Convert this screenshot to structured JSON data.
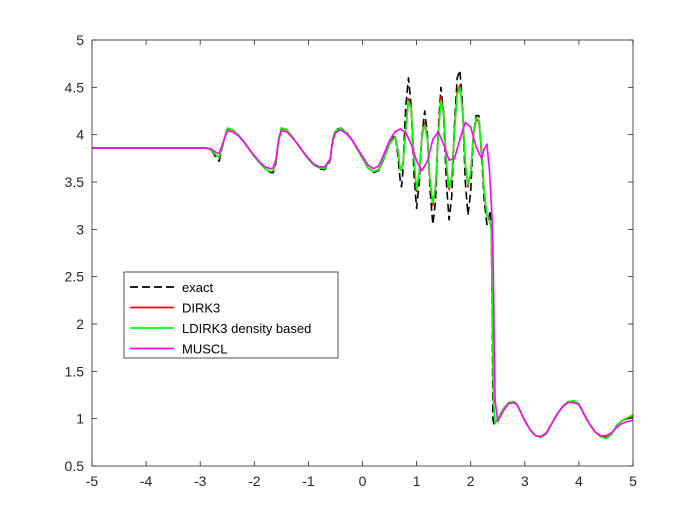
{
  "chart_data": {
    "type": "line",
    "xlabel": "",
    "ylabel": "",
    "xlim": [
      -5,
      5
    ],
    "ylim": [
      0.5,
      5
    ],
    "xticks": [
      -5,
      -4,
      -3,
      -2,
      -1,
      0,
      1,
      2,
      3,
      4,
      5
    ],
    "yticks": [
      0.5,
      1,
      1.5,
      2,
      2.5,
      3,
      3.5,
      4,
      4.5,
      5
    ],
    "grid": false,
    "legend_position": "center-left",
    "series": [
      {
        "name": "exact",
        "color": "#000000",
        "dash": "dashed",
        "x": [
          -5,
          -3.0,
          -2.9,
          -2.8,
          -2.75,
          -2.7,
          -2.65,
          -2.6,
          -2.5,
          -2.4,
          -2.3,
          -2.2,
          -2.1,
          -2.0,
          -1.9,
          -1.8,
          -1.7,
          -1.65,
          -1.6,
          -1.55,
          -1.5,
          -1.4,
          -1.3,
          -1.2,
          -1.1,
          -1.0,
          -0.9,
          -0.8,
          -0.7,
          -0.6,
          -0.55,
          -0.5,
          -0.4,
          -0.3,
          -0.2,
          -0.1,
          0.0,
          0.1,
          0.2,
          0.3,
          0.4,
          0.5,
          0.6,
          0.65,
          0.7,
          0.72,
          0.74,
          0.76,
          0.8,
          0.85,
          0.9,
          0.95,
          1.0,
          1.05,
          1.1,
          1.15,
          1.2,
          1.25,
          1.3,
          1.35,
          1.4,
          1.45,
          1.5,
          1.55,
          1.6,
          1.65,
          1.7,
          1.75,
          1.8,
          1.85,
          1.9,
          1.95,
          2.0,
          2.05,
          2.1,
          2.15,
          2.2,
          2.25,
          2.3,
          2.33,
          2.36,
          2.38,
          2.4,
          2.41,
          2.43,
          2.5,
          2.6,
          2.7,
          2.8,
          2.85,
          2.9,
          3.0,
          3.1,
          3.2,
          3.3,
          3.4,
          3.45,
          3.5,
          3.6,
          3.7,
          3.8,
          3.9,
          4.0,
          4.05,
          4.1,
          4.2,
          4.3,
          4.4,
          4.5,
          4.6,
          4.65,
          4.7,
          4.8,
          4.9,
          5.0
        ],
        "y": [
          3.86,
          3.86,
          3.86,
          3.84,
          3.8,
          3.75,
          3.72,
          3.85,
          4.07,
          4.05,
          4.0,
          3.93,
          3.85,
          3.77,
          3.7,
          3.64,
          3.6,
          3.6,
          3.7,
          3.95,
          4.07,
          4.05,
          3.98,
          3.9,
          3.82,
          3.74,
          3.68,
          3.64,
          3.63,
          3.72,
          3.95,
          4.05,
          4.07,
          4.03,
          3.95,
          3.85,
          3.75,
          3.65,
          3.6,
          3.62,
          3.75,
          3.9,
          4.0,
          3.8,
          3.5,
          3.45,
          3.55,
          3.8,
          4.3,
          4.6,
          4.3,
          3.6,
          3.22,
          3.5,
          4.0,
          4.25,
          4.0,
          3.4,
          3.05,
          3.3,
          4.05,
          4.5,
          4.2,
          3.5,
          3.1,
          3.35,
          4.1,
          4.6,
          4.68,
          4.3,
          3.5,
          3.15,
          3.4,
          4.0,
          4.2,
          4.2,
          3.8,
          3.3,
          3.05,
          3.1,
          3.2,
          3.0,
          2.0,
          1.0,
          0.93,
          1.0,
          1.1,
          1.17,
          1.17,
          1.15,
          1.1,
          0.98,
          0.88,
          0.82,
          0.81,
          0.85,
          0.9,
          0.95,
          1.05,
          1.13,
          1.18,
          1.18,
          1.15,
          1.1,
          1.04,
          0.94,
          0.86,
          0.81,
          0.8,
          0.84,
          0.88,
          0.93,
          0.98,
          1.0,
          1.02
        ]
      },
      {
        "name": "DIRK3",
        "color": "#ff0000",
        "dash": "solid",
        "x": [
          -5,
          -3.0,
          -2.9,
          -2.8,
          -2.75,
          -2.7,
          -2.65,
          -2.6,
          -2.5,
          -2.4,
          -2.3,
          -2.2,
          -2.1,
          -2.0,
          -1.9,
          -1.8,
          -1.7,
          -1.65,
          -1.6,
          -1.55,
          -1.5,
          -1.4,
          -1.3,
          -1.2,
          -1.1,
          -1.0,
          -0.9,
          -0.8,
          -0.7,
          -0.6,
          -0.55,
          -0.5,
          -0.4,
          -0.3,
          -0.2,
          -0.1,
          0.0,
          0.1,
          0.2,
          0.3,
          0.4,
          0.5,
          0.6,
          0.65,
          0.7,
          0.75,
          0.8,
          0.85,
          0.9,
          0.95,
          1.0,
          1.05,
          1.1,
          1.15,
          1.2,
          1.25,
          1.3,
          1.35,
          1.4,
          1.45,
          1.5,
          1.55,
          1.6,
          1.65,
          1.7,
          1.75,
          1.8,
          1.85,
          1.9,
          1.95,
          2.0,
          2.05,
          2.1,
          2.15,
          2.2,
          2.25,
          2.3,
          2.35,
          2.38,
          2.4,
          2.42,
          2.45,
          2.5,
          2.6,
          2.7,
          2.8,
          2.85,
          2.9,
          3.0,
          3.1,
          3.2,
          3.3,
          3.4,
          3.45,
          3.5,
          3.6,
          3.7,
          3.8,
          3.9,
          4.0,
          4.05,
          4.1,
          4.2,
          4.3,
          4.4,
          4.5,
          4.6,
          4.65,
          4.7,
          4.8,
          4.9,
          5.0
        ],
        "y": [
          3.86,
          3.86,
          3.86,
          3.84,
          3.81,
          3.78,
          3.76,
          3.86,
          4.06,
          4.05,
          4.0,
          3.93,
          3.85,
          3.77,
          3.7,
          3.64,
          3.61,
          3.62,
          3.72,
          3.95,
          4.06,
          4.05,
          3.98,
          3.9,
          3.82,
          3.74,
          3.68,
          3.65,
          3.64,
          3.73,
          3.95,
          4.04,
          4.06,
          4.02,
          3.95,
          3.85,
          3.75,
          3.65,
          3.61,
          3.63,
          3.76,
          3.9,
          3.98,
          3.85,
          3.62,
          3.7,
          4.05,
          4.38,
          4.3,
          3.75,
          3.4,
          3.6,
          4.0,
          4.13,
          3.95,
          3.5,
          3.25,
          3.45,
          4.0,
          4.4,
          4.25,
          3.7,
          3.42,
          3.55,
          4.05,
          4.45,
          4.52,
          4.25,
          3.7,
          3.45,
          3.6,
          4.0,
          4.15,
          4.15,
          3.85,
          3.4,
          3.15,
          3.1,
          3.0,
          2.2,
          1.2,
          0.95,
          1.0,
          1.1,
          1.17,
          1.17,
          1.15,
          1.1,
          0.98,
          0.88,
          0.82,
          0.81,
          0.85,
          0.9,
          0.95,
          1.05,
          1.13,
          1.18,
          1.18,
          1.15,
          1.1,
          1.04,
          0.94,
          0.86,
          0.81,
          0.8,
          0.84,
          0.88,
          0.93,
          0.98,
          1.0,
          1.02
        ]
      },
      {
        "name": "LDIRK3 density based",
        "color": "#00ff00",
        "dash": "solid",
        "x": [
          -5,
          -3.0,
          -2.9,
          -2.8,
          -2.75,
          -2.7,
          -2.65,
          -2.6,
          -2.5,
          -2.4,
          -2.3,
          -2.2,
          -2.1,
          -2.0,
          -1.9,
          -1.8,
          -1.7,
          -1.65,
          -1.6,
          -1.55,
          -1.5,
          -1.4,
          -1.3,
          -1.2,
          -1.1,
          -1.0,
          -0.9,
          -0.8,
          -0.7,
          -0.6,
          -0.55,
          -0.5,
          -0.4,
          -0.3,
          -0.2,
          -0.1,
          0.0,
          0.1,
          0.2,
          0.3,
          0.4,
          0.5,
          0.6,
          0.65,
          0.7,
          0.75,
          0.8,
          0.85,
          0.9,
          0.95,
          1.0,
          1.05,
          1.1,
          1.15,
          1.2,
          1.25,
          1.3,
          1.35,
          1.4,
          1.45,
          1.5,
          1.55,
          1.6,
          1.65,
          1.7,
          1.75,
          1.8,
          1.85,
          1.9,
          1.95,
          2.0,
          2.05,
          2.1,
          2.15,
          2.2,
          2.25,
          2.3,
          2.35,
          2.38,
          2.4,
          2.42,
          2.45,
          2.5,
          2.6,
          2.7,
          2.8,
          2.85,
          2.9,
          3.0,
          3.1,
          3.2,
          3.3,
          3.4,
          3.45,
          3.5,
          3.6,
          3.7,
          3.8,
          3.9,
          4.0,
          4.05,
          4.1,
          4.2,
          4.3,
          4.4,
          4.5,
          4.6,
          4.65,
          4.7,
          4.8,
          4.9,
          5.0
        ],
        "y": [
          3.86,
          3.86,
          3.86,
          3.84,
          3.81,
          3.78,
          3.76,
          3.86,
          4.07,
          4.05,
          4.0,
          3.93,
          3.85,
          3.77,
          3.7,
          3.64,
          3.61,
          3.62,
          3.72,
          3.95,
          4.07,
          4.05,
          3.98,
          3.9,
          3.82,
          3.74,
          3.68,
          3.65,
          3.64,
          3.73,
          3.95,
          4.04,
          4.07,
          4.02,
          3.95,
          3.85,
          3.75,
          3.65,
          3.61,
          3.63,
          3.76,
          3.9,
          3.98,
          3.85,
          3.62,
          3.7,
          4.05,
          4.35,
          4.28,
          3.75,
          3.42,
          3.6,
          4.0,
          4.1,
          3.95,
          3.5,
          3.28,
          3.45,
          3.98,
          4.36,
          4.22,
          3.7,
          3.44,
          3.55,
          4.02,
          4.42,
          4.5,
          4.25,
          3.7,
          3.47,
          3.6,
          4.0,
          4.18,
          4.15,
          3.85,
          3.4,
          3.15,
          3.1,
          3.0,
          2.2,
          1.2,
          0.95,
          1.0,
          1.1,
          1.17,
          1.18,
          1.16,
          1.1,
          0.98,
          0.88,
          0.82,
          0.8,
          0.84,
          0.89,
          0.95,
          1.05,
          1.13,
          1.18,
          1.19,
          1.16,
          1.1,
          1.04,
          0.94,
          0.86,
          0.81,
          0.79,
          0.83,
          0.88,
          0.93,
          0.98,
          1.01,
          1.04
        ]
      },
      {
        "name": "MUSCL",
        "color": "#ff00ff",
        "dash": "solid",
        "x": [
          -5,
          -3.0,
          -2.9,
          -2.8,
          -2.75,
          -2.7,
          -2.65,
          -2.6,
          -2.5,
          -2.4,
          -2.3,
          -2.2,
          -2.1,
          -2.0,
          -1.9,
          -1.8,
          -1.7,
          -1.65,
          -1.6,
          -1.55,
          -1.5,
          -1.4,
          -1.3,
          -1.2,
          -1.1,
          -1.0,
          -0.9,
          -0.8,
          -0.7,
          -0.6,
          -0.55,
          -0.5,
          -0.4,
          -0.3,
          -0.2,
          -0.1,
          0.0,
          0.1,
          0.2,
          0.3,
          0.4,
          0.5,
          0.6,
          0.7,
          0.8,
          0.9,
          1.0,
          1.1,
          1.2,
          1.3,
          1.4,
          1.5,
          1.6,
          1.7,
          1.8,
          1.9,
          2.0,
          2.1,
          2.2,
          2.25,
          2.3,
          2.35,
          2.4,
          2.42,
          2.45,
          2.5,
          2.6,
          2.7,
          2.8,
          2.85,
          2.9,
          3.0,
          3.1,
          3.2,
          3.3,
          3.4,
          3.45,
          3.5,
          3.6,
          3.7,
          3.8,
          3.9,
          4.0,
          4.05,
          4.1,
          4.2,
          4.3,
          4.4,
          4.5,
          4.6,
          4.65,
          4.7,
          4.8,
          4.9,
          5.0
        ],
        "y": [
          3.86,
          3.86,
          3.86,
          3.85,
          3.83,
          3.81,
          3.8,
          3.88,
          4.04,
          4.03,
          3.99,
          3.93,
          3.85,
          3.78,
          3.71,
          3.66,
          3.64,
          3.65,
          3.74,
          3.94,
          4.04,
          4.03,
          3.97,
          3.9,
          3.82,
          3.75,
          3.69,
          3.66,
          3.66,
          3.74,
          3.93,
          4.02,
          4.05,
          4.01,
          3.95,
          3.86,
          3.77,
          3.68,
          3.64,
          3.67,
          3.8,
          3.94,
          4.03,
          4.06,
          4.02,
          3.9,
          3.72,
          3.62,
          3.72,
          3.95,
          4.03,
          3.9,
          3.73,
          3.75,
          3.95,
          4.13,
          4.08,
          3.87,
          3.75,
          3.85,
          3.9,
          3.6,
          3.05,
          2.5,
          1.2,
          0.97,
          1.08,
          1.16,
          1.17,
          1.15,
          1.1,
          0.98,
          0.88,
          0.82,
          0.81,
          0.85,
          0.9,
          0.95,
          1.05,
          1.13,
          1.17,
          1.17,
          1.15,
          1.1,
          1.04,
          0.94,
          0.86,
          0.82,
          0.82,
          0.85,
          0.88,
          0.91,
          0.95,
          0.97,
          0.98
        ]
      }
    ]
  }
}
